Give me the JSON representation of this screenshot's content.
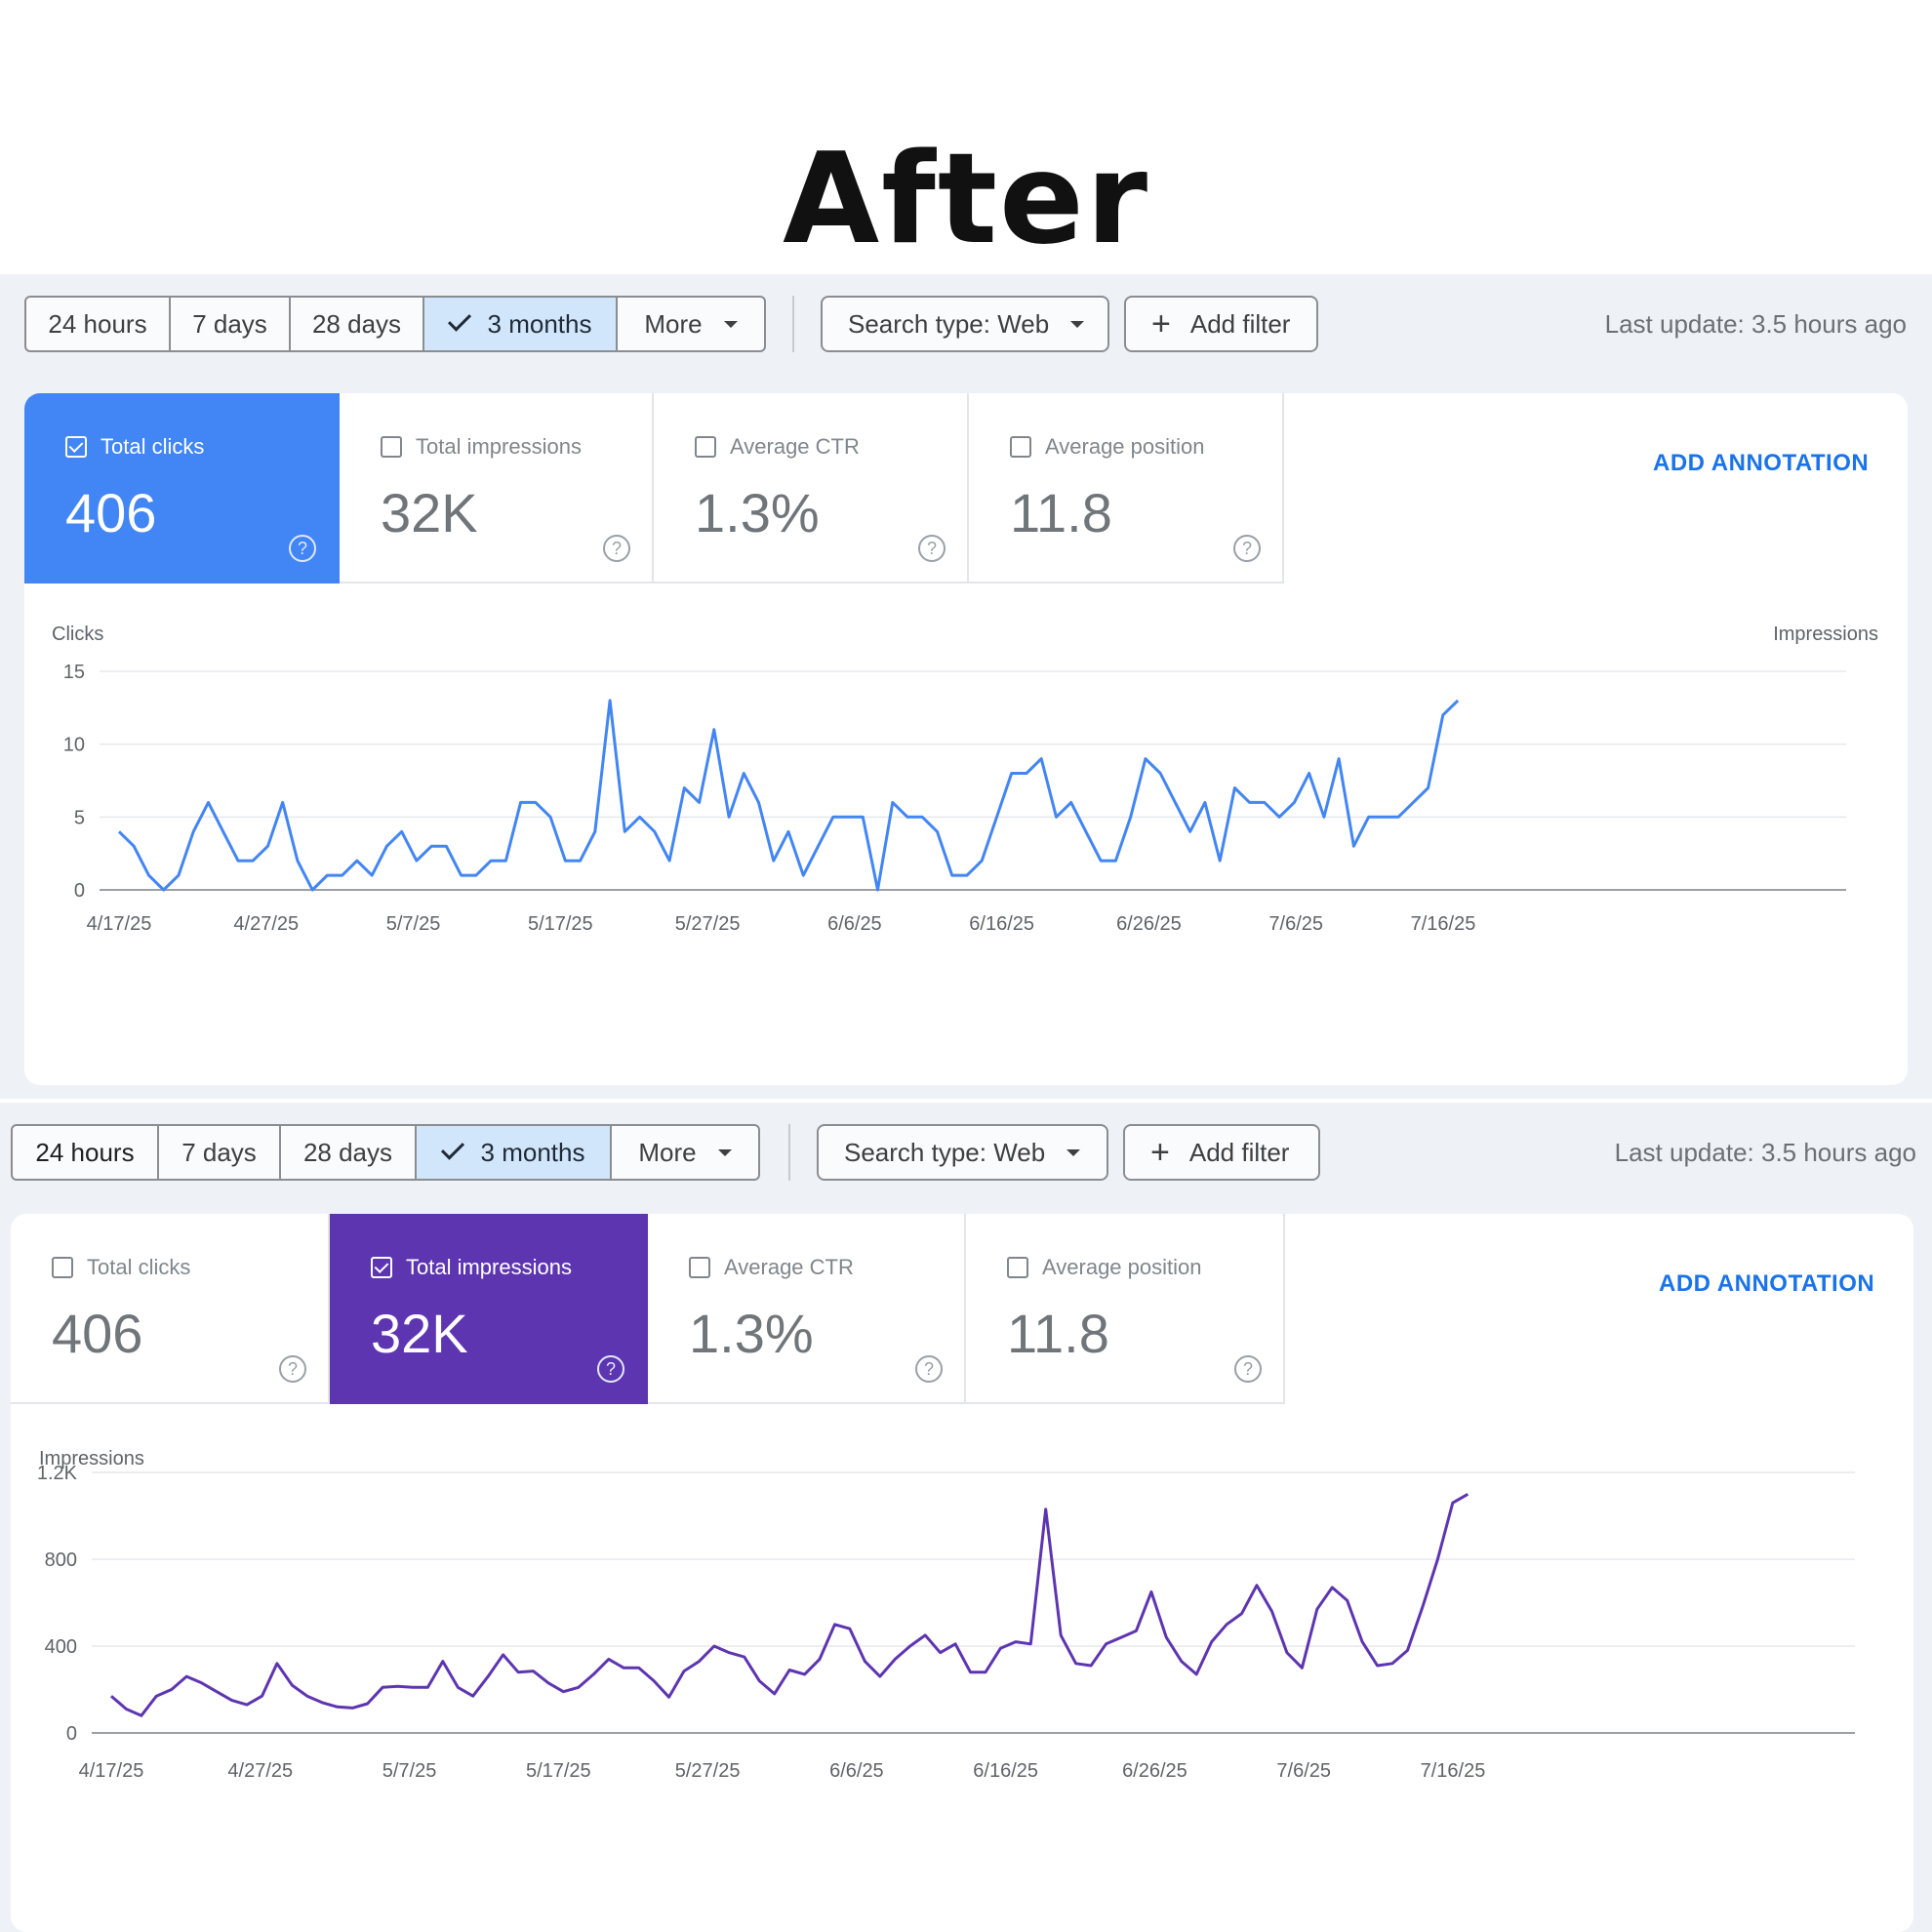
{
  "heading": "After",
  "panels": [
    {
      "time_options": [
        "24 hours",
        "7 days",
        "28 days",
        "3 months"
      ],
      "selected_time": "3 months",
      "more_label": "More",
      "search_type": "Search type: Web",
      "add_filter": "Add filter",
      "last_update": "Last update: 3.5 hours ago",
      "metrics": [
        {
          "label": "Total clicks",
          "value": "406",
          "checked": true
        },
        {
          "label": "Total impressions",
          "value": "32K",
          "checked": false
        },
        {
          "label": "Average CTR",
          "value": "1.3%",
          "checked": false
        },
        {
          "label": "Average position",
          "value": "11.8",
          "checked": false
        }
      ],
      "add_annotation": "ADD ANNOTATION",
      "help_glyph": "?"
    },
    {
      "time_options": [
        "24 hours",
        "7 days",
        "28 days",
        "3 months"
      ],
      "selected_time": "3 months",
      "more_label": "More",
      "search_type": "Search type: Web",
      "add_filter": "Add filter",
      "last_update": "Last update: 3.5 hours ago",
      "metrics": [
        {
          "label": "Total clicks",
          "value": "406",
          "checked": false
        },
        {
          "label": "Total impressions",
          "value": "32K",
          "checked": true
        },
        {
          "label": "Average CTR",
          "value": "1.3%",
          "checked": false
        },
        {
          "label": "Average position",
          "value": "11.8",
          "checked": false
        }
      ],
      "add_annotation": "ADD ANNOTATION",
      "help_glyph": "?"
    }
  ],
  "colors": {
    "clicks": "#4285f4",
    "impressions": "#5e35b1",
    "accent_link": "#1a73e8",
    "background": "#eef2f7"
  },
  "chart_data": [
    {
      "type": "line",
      "ylabel": "Clicks",
      "y2label": "Impressions",
      "ylim": [
        0,
        15
      ],
      "yticks": [
        0,
        5,
        10,
        15
      ],
      "ytick_labels": [
        "0",
        "5",
        "10",
        "15"
      ],
      "x_start": "4/17/25",
      "x_end": "7/16/25",
      "xtick_labels": [
        "4/17/25",
        "4/27/25",
        "5/7/25",
        "5/17/25",
        "5/27/25",
        "6/6/25",
        "6/16/25",
        "6/26/25",
        "7/6/25",
        "7/16/25"
      ],
      "series": [
        {
          "values": [
            4,
            3,
            1,
            0,
            1,
            4,
            6,
            4,
            2,
            2,
            3,
            6,
            2,
            0,
            1,
            1,
            2,
            1,
            3,
            4,
            2,
            3,
            3,
            1,
            1,
            2,
            2,
            6,
            6,
            5,
            2,
            2,
            4,
            13,
            4,
            5,
            4,
            2,
            7,
            6,
            11,
            5,
            8,
            6,
            2,
            4,
            1,
            3,
            5,
            5,
            5,
            0,
            6,
            5,
            5,
            4,
            1,
            1,
            2,
            5,
            8,
            8,
            9,
            5,
            6,
            4,
            2,
            2,
            5,
            9,
            8,
            6,
            4,
            6,
            2,
            7,
            6,
            6,
            5,
            6,
            8,
            5,
            9,
            3,
            5,
            5,
            5,
            6,
            7,
            12,
            13
          ]
        }
      ]
    },
    {
      "type": "line",
      "ylabel": "Impressions",
      "ylim": [
        0,
        1200
      ],
      "yticks": [
        0,
        400,
        800,
        1200
      ],
      "ytick_labels": [
        "0",
        "400",
        "800",
        "1.2K"
      ],
      "x_start": "4/17/25",
      "x_end": "7/16/25",
      "xtick_labels": [
        "4/17/25",
        "4/27/25",
        "5/7/25",
        "5/17/25",
        "5/27/25",
        "6/6/25",
        "6/16/25",
        "6/26/25",
        "7/6/25",
        "7/16/25"
      ],
      "series": [
        {
          "values": [
            170,
            110,
            80,
            170,
            200,
            260,
            230,
            190,
            150,
            130,
            170,
            320,
            220,
            170,
            140,
            120,
            115,
            135,
            210,
            215,
            210,
            210,
            330,
            210,
            170,
            260,
            360,
            280,
            285,
            230,
            190,
            210,
            270,
            340,
            300,
            300,
            240,
            165,
            285,
            330,
            400,
            370,
            350,
            240,
            180,
            290,
            270,
            340,
            500,
            480,
            330,
            260,
            340,
            400,
            450,
            370,
            410,
            280,
            280,
            390,
            420,
            410,
            1030,
            450,
            320,
            310,
            410,
            440,
            470,
            650,
            440,
            330,
            270,
            420,
            500,
            550,
            680,
            560,
            370,
            300,
            570,
            670,
            610,
            420,
            310,
            320,
            380,
            580,
            800,
            1060,
            1100
          ]
        }
      ]
    }
  ]
}
